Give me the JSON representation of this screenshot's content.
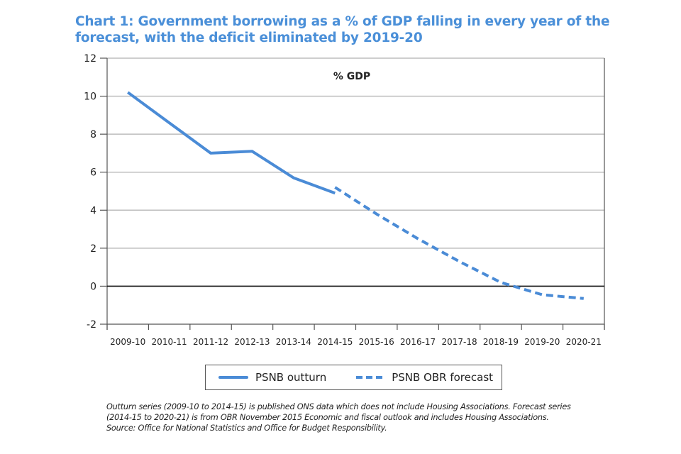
{
  "title_lines": [
    "Chart 1: Government borrowing as a % of GDP falling in every year of the",
    "forecast, with the deficit eliminated by 2019-20"
  ],
  "colors": {
    "title": "#4a8fd8",
    "series_line": "#4a8bd6",
    "gridline": "#bdbdbd",
    "axis": "#555555",
    "zero_line": "#111111"
  },
  "legend": {
    "items": [
      {
        "label": "PSNB outturn",
        "style": "solid"
      },
      {
        "label": "PSNB OBR forecast",
        "style": "dashed"
      }
    ]
  },
  "footnote_lines": [
    "Outturn series (2009-10 to 2014-15) is published ONS data which does not include Housing Associations. Forecast series",
    "(2014-15 to 2020-21) is from OBR November 2015 Economic and fiscal outlook and includes Housing Associations.",
    "Source: Office for National Statistics and Office for Budget Responsibility."
  ],
  "chart_data": {
    "type": "line",
    "title": "Chart 1: Government borrowing as a % of GDP falling in every year of the forecast, with the deficit eliminated by 2019-20",
    "unit_label": "% GDP",
    "xlabel": "",
    "ylabel": "% GDP",
    "categories": [
      "2009-10",
      "2010-11",
      "2011-12",
      "2012-13",
      "2013-14",
      "2014-15",
      "2015-16",
      "2016-17",
      "2017-18",
      "2018-19",
      "2019-20",
      "2020-21"
    ],
    "ylim": [
      -2,
      12
    ],
    "yticks": [
      -2,
      0,
      2,
      4,
      6,
      8,
      10,
      12
    ],
    "grid": true,
    "legend_position": "bottom",
    "series": [
      {
        "name": "PSNB outturn",
        "style": "solid",
        "values": [
          10.2,
          8.6,
          7.0,
          7.1,
          5.7,
          4.9,
          null,
          null,
          null,
          null,
          null,
          null
        ]
      },
      {
        "name": "PSNB OBR forecast",
        "style": "dashed",
        "values": [
          null,
          null,
          null,
          null,
          null,
          5.2,
          3.8,
          2.5,
          1.3,
          0.2,
          -0.45,
          -0.65
        ]
      }
    ]
  }
}
